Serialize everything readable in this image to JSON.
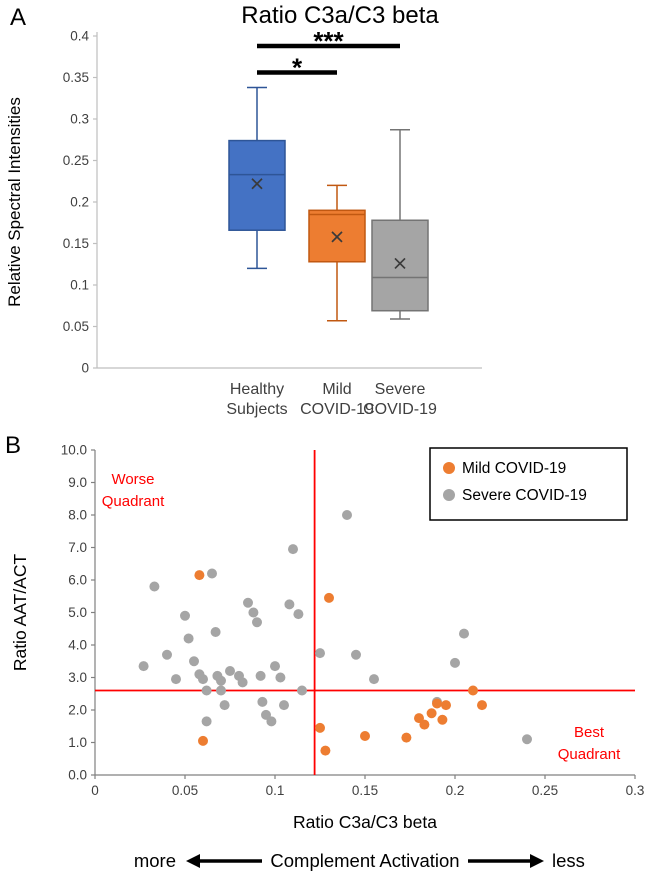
{
  "figure": {
    "panel_a_label": "A",
    "panel_b_label": "B"
  },
  "chart_data": [
    {
      "type": "box",
      "title": "Ratio C3a/C3 beta",
      "ylabel": "Relative Spectral Intensities",
      "ylim": [
        0,
        0.4
      ],
      "ytick_values": [
        0,
        0.05,
        0.1,
        0.15,
        0.2,
        0.25,
        0.3,
        0.35,
        0.4
      ],
      "ytick_labels": [
        "0",
        "0.05",
        "0.1",
        "0.15",
        "0.2",
        "0.25",
        "0.3",
        "0.35",
        "0.4"
      ],
      "grid": false,
      "categories": [
        [
          "Healthy",
          "Subjects"
        ],
        [
          "Mild",
          "COVID-19"
        ],
        [
          "Severe",
          "COVID-19"
        ]
      ],
      "boxes": [
        {
          "name": "Healthy Subjects",
          "fill": "#4472C4",
          "stroke": "#2E5597",
          "whisker_low": 0.12,
          "q1": 0.166,
          "median": 0.233,
          "q3": 0.274,
          "whisker_high": 0.338,
          "mean": 0.222
        },
        {
          "name": "Mild COVID-19",
          "fill": "#ED7D31",
          "stroke": "#C15811",
          "whisker_low": 0.057,
          "q1": 0.128,
          "median": 0.185,
          "q3": 0.19,
          "whisker_high": 0.22,
          "mean": 0.158
        },
        {
          "name": "Severe COVID-19",
          "fill": "#A5A5A5",
          "stroke": "#747474",
          "whisker_low": 0.059,
          "q1": 0.069,
          "median": 0.109,
          "q3": 0.178,
          "whisker_high": 0.287,
          "mean": 0.126
        }
      ],
      "significance": [
        {
          "from": 0,
          "to": 1,
          "y": 0.356,
          "label": "*"
        },
        {
          "from": 0,
          "to": 2,
          "y": 0.388,
          "label": "***"
        }
      ]
    },
    {
      "type": "scatter",
      "xlabel": "Ratio C3a/C3 beta",
      "ylabel": "Ratio AAT/ACT",
      "xlim": [
        0,
        0.3
      ],
      "ylim": [
        0,
        10
      ],
      "xtick_values": [
        0,
        0.05,
        0.1,
        0.15,
        0.2,
        0.25,
        0.3
      ],
      "xtick_labels": [
        "0",
        "0.05",
        "0.1",
        "0.15",
        "0.2",
        "0.25",
        "0.3"
      ],
      "ytick_values": [
        0,
        1,
        2,
        3,
        4,
        5,
        6,
        7,
        8,
        9,
        10
      ],
      "ytick_labels": [
        "0.0",
        "1.0",
        "2.0",
        "3.0",
        "4.0",
        "5.0",
        "6.0",
        "7.0",
        "8.0",
        "9.0",
        "10.0"
      ],
      "grid": false,
      "legend_position": "top-right",
      "reference_lines": {
        "x": 0.122,
        "y": 2.6,
        "color": "#FF0000"
      },
      "quadrant_labels": {
        "worse": {
          "lines": [
            "Worse",
            "Quadrant"
          ],
          "color": "#FF0000"
        },
        "best": {
          "lines": [
            "Best",
            "Quadrant"
          ],
          "color": "#FF0000"
        }
      },
      "series": [
        {
          "name": "Mild COVID-19",
          "color": "#ED7D31",
          "points": [
            [
              0.058,
              6.15
            ],
            [
              0.06,
              1.05
            ],
            [
              0.125,
              1.45
            ],
            [
              0.128,
              0.75
            ],
            [
              0.13,
              5.45
            ],
            [
              0.15,
              1.2
            ],
            [
              0.173,
              1.15
            ],
            [
              0.18,
              1.75
            ],
            [
              0.183,
              1.55
            ],
            [
              0.187,
              1.9
            ],
            [
              0.19,
              2.2
            ],
            [
              0.193,
              1.7
            ],
            [
              0.195,
              2.15
            ],
            [
              0.21,
              2.6
            ],
            [
              0.215,
              2.15
            ]
          ]
        },
        {
          "name": "Severe COVID-19",
          "color": "#A5A5A5",
          "points": [
            [
              0.027,
              3.35
            ],
            [
              0.033,
              5.8
            ],
            [
              0.04,
              3.7
            ],
            [
              0.045,
              2.95
            ],
            [
              0.05,
              4.9
            ],
            [
              0.052,
              4.2
            ],
            [
              0.055,
              3.5
            ],
            [
              0.058,
              3.1
            ],
            [
              0.06,
              2.95
            ],
            [
              0.062,
              2.6
            ],
            [
              0.062,
              1.65
            ],
            [
              0.065,
              6.2
            ],
            [
              0.067,
              4.4
            ],
            [
              0.068,
              3.05
            ],
            [
              0.07,
              2.9
            ],
            [
              0.07,
              2.6
            ],
            [
              0.072,
              2.15
            ],
            [
              0.075,
              3.2
            ],
            [
              0.08,
              3.05
            ],
            [
              0.082,
              2.85
            ],
            [
              0.085,
              5.3
            ],
            [
              0.088,
              5.0
            ],
            [
              0.09,
              4.7
            ],
            [
              0.092,
              3.05
            ],
            [
              0.093,
              2.25
            ],
            [
              0.095,
              1.85
            ],
            [
              0.098,
              1.65
            ],
            [
              0.1,
              3.35
            ],
            [
              0.103,
              3.0
            ],
            [
              0.105,
              2.15
            ],
            [
              0.108,
              5.25
            ],
            [
              0.11,
              6.95
            ],
            [
              0.113,
              4.95
            ],
            [
              0.115,
              2.6
            ],
            [
              0.125,
              3.75
            ],
            [
              0.14,
              8.0
            ],
            [
              0.145,
              3.7
            ],
            [
              0.155,
              2.95
            ],
            [
              0.19,
              2.25
            ],
            [
              0.2,
              3.45
            ],
            [
              0.205,
              4.35
            ],
            [
              0.24,
              1.1
            ]
          ]
        }
      ]
    }
  ],
  "footer": {
    "more_label": "more",
    "center_label": "Complement Activation",
    "less_label": "less"
  }
}
